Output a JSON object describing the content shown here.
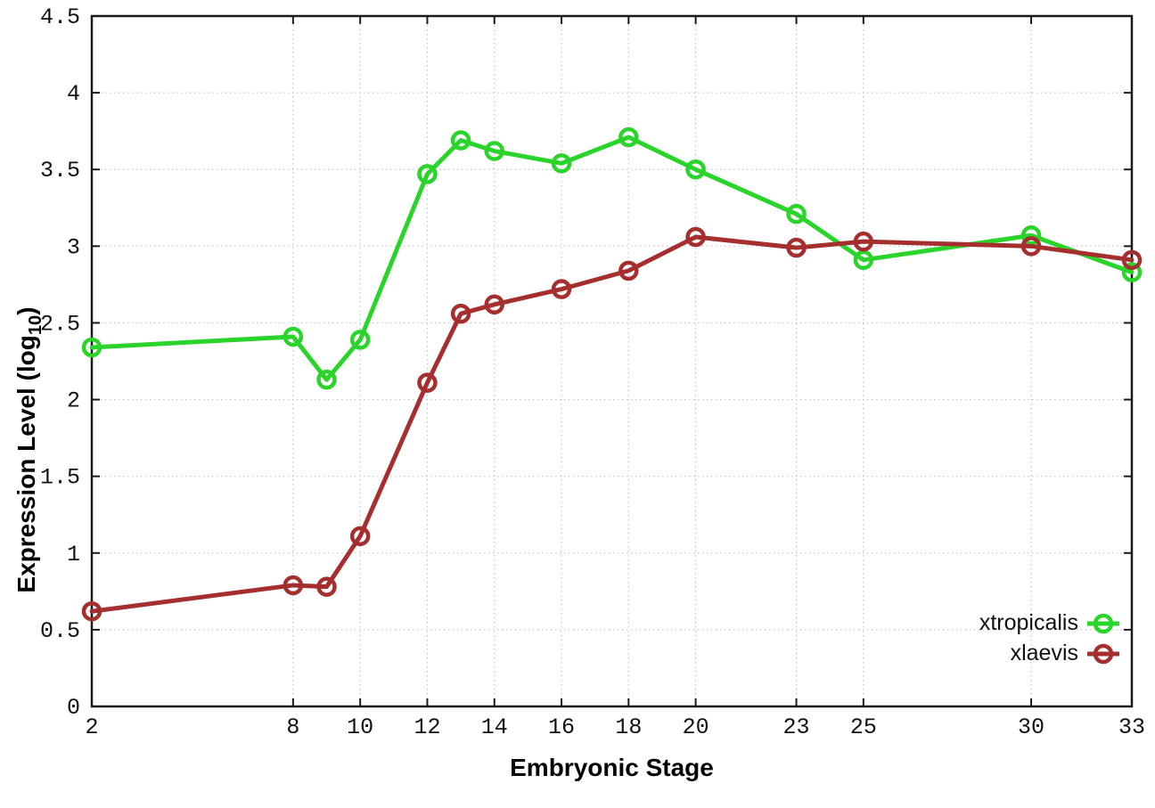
{
  "page": {
    "background": "#ffffff"
  },
  "chart_data": {
    "type": "line",
    "title": "",
    "xlabel": "Embryonic Stage",
    "ylabel": "Expression Level (log10)",
    "ylabel_parts": {
      "prefix": "Expression Level (log",
      "sub": "10",
      "suffix": ")"
    },
    "xlim": [
      2,
      33
    ],
    "ylim": [
      0,
      4.5
    ],
    "xticks": [
      2,
      8,
      10,
      12,
      14,
      16,
      18,
      20,
      23,
      25,
      30,
      33
    ],
    "yticks": [
      0,
      0.5,
      1,
      1.5,
      2,
      2.5,
      3,
      3.5,
      4,
      4.5
    ],
    "grid": true,
    "grid_style": "dotted",
    "legend_position": "inside-bottom-right",
    "x": [
      2,
      8,
      9,
      10,
      12,
      13,
      14,
      16,
      18,
      20,
      23,
      25,
      30,
      33
    ],
    "series": [
      {
        "name": "xtropicalis",
        "color": "#2bd42b",
        "marker": "open-circle",
        "values": [
          2.34,
          2.41,
          2.13,
          2.39,
          3.47,
          3.69,
          3.62,
          3.54,
          3.71,
          3.5,
          3.21,
          2.91,
          3.07,
          2.83
        ]
      },
      {
        "name": "xlaevis",
        "color": "#a52f2f",
        "marker": "open-circle",
        "values": [
          0.62,
          0.79,
          0.78,
          1.11,
          2.11,
          2.56,
          2.62,
          2.72,
          2.84,
          3.06,
          2.99,
          3.03,
          3.0,
          2.91
        ]
      }
    ],
    "colors": {
      "frame": "#1a1a1a",
      "grid": "#c6c6c6",
      "text": "#111111"
    }
  }
}
